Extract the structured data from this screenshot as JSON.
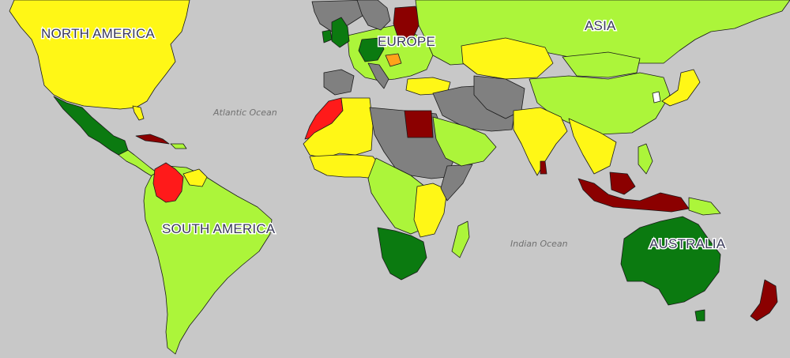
{
  "map": {
    "background_color": "#c8c8c8",
    "legend_colors": {
      "dark_green": "#0b7a10",
      "light_green": "#acf53a",
      "yellow": "#fff716",
      "orange": "#ffa31a",
      "red": "#ff1a1a",
      "dark_red": "#8b0000",
      "grey": "#808080"
    },
    "continent_labels": {
      "north_america": "NORTH AMERICA",
      "south_america": "SOUTH AMERICA",
      "europe": "EUROPE",
      "asia": "ASIA",
      "australia": "AUSTRALIA"
    },
    "ocean_labels": {
      "atlantic": "Atlantic Ocean",
      "indian": "Indian Ocean"
    }
  }
}
